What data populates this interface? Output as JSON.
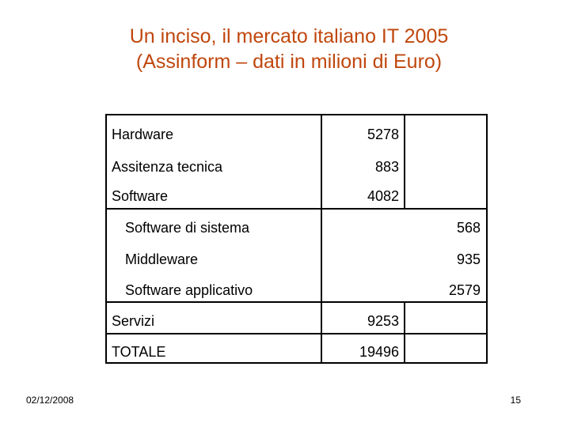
{
  "title": {
    "line1": "Un inciso, il mercato italiano IT 2005",
    "line2": "(Assinform – dati in milioni di Euro)"
  },
  "rows": [
    {
      "label": "Hardware",
      "value": "5278"
    },
    {
      "label": "Assitenza tecnica",
      "value": "883"
    },
    {
      "label": "Software",
      "value": "4082"
    },
    {
      "label": "Software di sistema",
      "value": "568"
    },
    {
      "label": "Middleware",
      "value": "935"
    },
    {
      "label": "Software applicativo",
      "value": "2579"
    },
    {
      "label": "Servizi",
      "value": "9253"
    },
    {
      "label": "TOTALE",
      "value": "19496"
    }
  ],
  "footer": {
    "date": "02/12/2008",
    "page": "15"
  }
}
